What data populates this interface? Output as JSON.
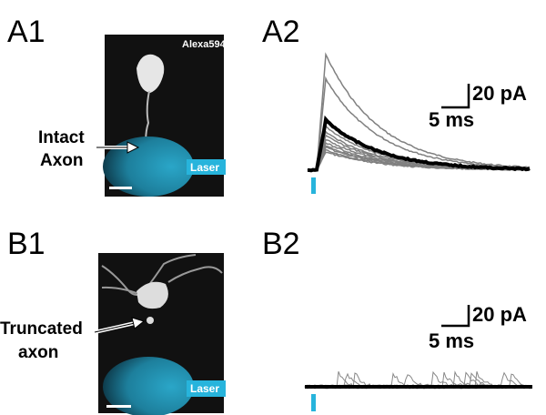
{
  "panels": {
    "A1": {
      "label": "A1",
      "dye": "Alexa594",
      "arrow_label": [
        "Intact",
        "Axon"
      ],
      "laser": "Laser"
    },
    "A2": {
      "label": "A2",
      "scale_y": "20 pA",
      "scale_x": "5 ms"
    },
    "B1": {
      "label": "B1",
      "arrow_label": [
        "Truncated",
        "axon"
      ],
      "laser": "Laser"
    },
    "B2": {
      "label": "B2",
      "scale_y": "20 pA",
      "scale_x": "5 ms"
    }
  }
}
